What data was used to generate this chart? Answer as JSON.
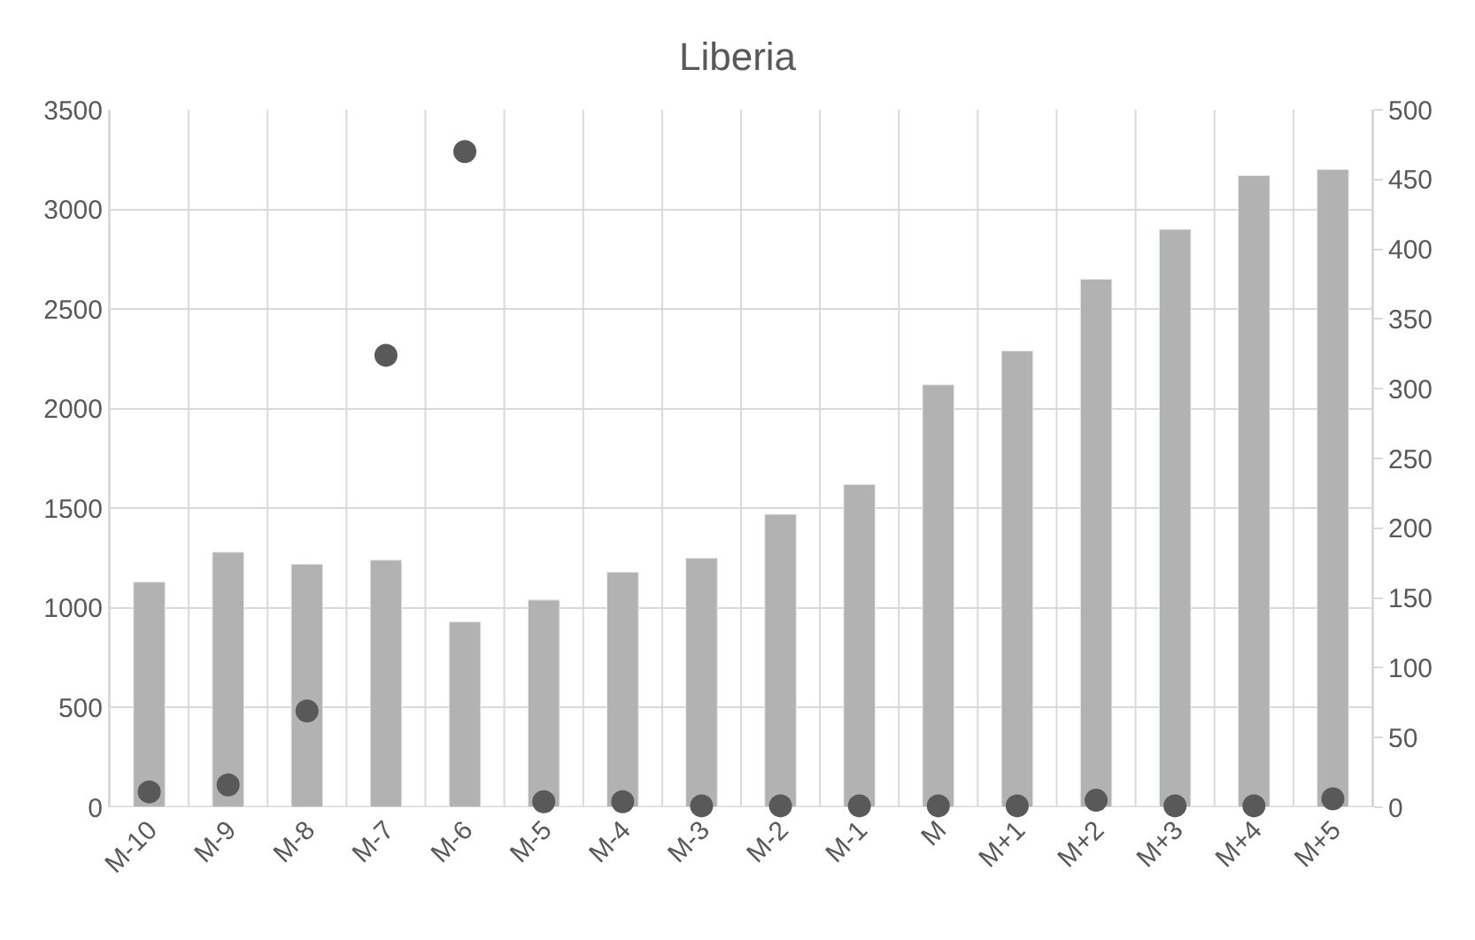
{
  "chart_data": {
    "type": "bar",
    "title": "Liberia",
    "categories": [
      "M-10",
      "M-9",
      "M-8",
      "M-7",
      "M-6",
      "M-5",
      "M-4",
      "M-3",
      "M-2",
      "M-1",
      "M",
      "M+1",
      "M+2",
      "M+3",
      "M+4",
      "M+5"
    ],
    "series": [
      {
        "color": "#b2b2b2",
        "values": [
          1130,
          1280,
          1220,
          1240,
          930,
          1040,
          1180,
          1250,
          1470,
          1620,
          2120,
          2290,
          2650,
          2900,
          3170,
          3200
        ]
      },
      {
        "type": "scatter",
        "axis": "y2",
        "color": "#595959",
        "marker": "circle",
        "values": [
          11,
          16,
          69,
          324,
          470,
          4,
          4,
          1,
          1,
          1,
          1,
          1,
          5,
          1,
          1,
          6
        ]
      }
    ],
    "ylim": [
      0,
      3500
    ],
    "yticks": [
      0,
      500,
      1000,
      1500,
      2000,
      2500,
      3000,
      3500
    ],
    "y2lim": [
      0,
      500
    ],
    "y2ticks": [
      0,
      50,
      100,
      150,
      200,
      250,
      300,
      350,
      400,
      450,
      500
    ],
    "grid": true
  }
}
